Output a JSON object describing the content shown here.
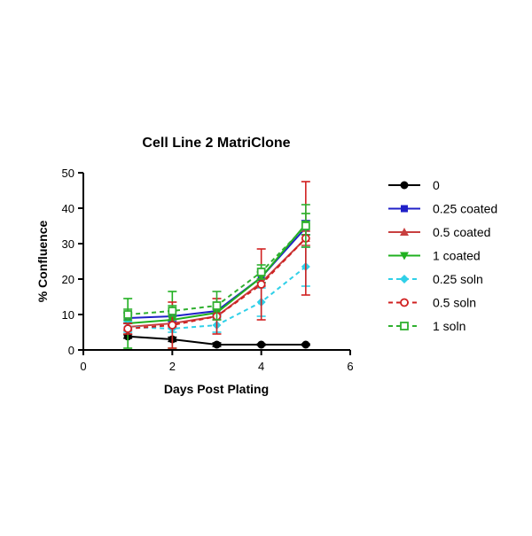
{
  "chart_data": {
    "type": "line",
    "title": "Cell Line 2 MatriClone",
    "xlabel": "Days Post Plating",
    "ylabel": "% Confluence",
    "xlim": [
      0,
      6
    ],
    "ylim": [
      0,
      50
    ],
    "xticks": [
      "0",
      "2",
      "4",
      "6"
    ],
    "yticks": [
      "0",
      "10",
      "20",
      "30",
      "40",
      "50"
    ],
    "grid": false,
    "legend_position": "right",
    "x": [
      1,
      2,
      3,
      4,
      5
    ],
    "series": [
      {
        "name": "0",
        "color": "#000000",
        "marker": "circle",
        "line_style": "solid",
        "values": [
          3.8,
          3.0,
          1.5,
          1.5,
          1.5
        ],
        "errors": [
          0.5,
          0.6,
          0.5,
          0.2,
          0.2
        ]
      },
      {
        "name": "0.25 coated",
        "color": "#2020c8",
        "marker": "square",
        "line_style": "solid",
        "values": [
          9.0,
          9.5,
          11.0,
          20.5,
          34.5
        ],
        "errors": [
          1.5,
          1.5,
          1.0,
          1.5,
          2.0
        ]
      },
      {
        "name": "0.5 coated",
        "color": "#c84040",
        "marker": "triangle-up",
        "line_style": "solid",
        "values": [
          6.5,
          7.5,
          9.5,
          19.0,
          31.5
        ],
        "errors": [
          1.0,
          1.0,
          1.0,
          1.0,
          2.0
        ]
      },
      {
        "name": "1 coated",
        "color": "#20b020",
        "marker": "triangle-down",
        "line_style": "solid",
        "values": [
          7.5,
          8.5,
          10.5,
          20.5,
          35.5
        ],
        "errors": [
          7.0,
          8.0,
          1.0,
          1.5,
          3.0
        ]
      },
      {
        "name": "0.25 soln",
        "color": "#30d0e8",
        "marker": "diamond",
        "line_style": "dashed",
        "values": [
          6.5,
          6.0,
          7.0,
          13.5,
          23.5
        ],
        "errors": [
          1.5,
          1.0,
          2.0,
          4.0,
          5.5
        ]
      },
      {
        "name": "0.5 soln",
        "color": "#d02020",
        "marker": "circle-open",
        "line_style": "dashed",
        "values": [
          6.0,
          7.0,
          9.5,
          18.5,
          31.5
        ],
        "errors": [
          1.5,
          6.5,
          5.0,
          10.0,
          16.0
        ]
      },
      {
        "name": "1 soln",
        "color": "#30b030",
        "marker": "square-open",
        "line_style": "dashed",
        "values": [
          10.0,
          11.0,
          12.5,
          22.0,
          35.0
        ],
        "errors": [
          1.5,
          1.5,
          4.0,
          2.0,
          6.0
        ]
      }
    ]
  }
}
